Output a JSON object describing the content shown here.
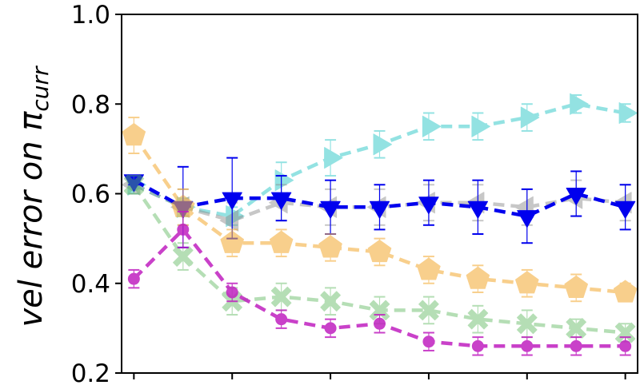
{
  "chart_data": {
    "type": "line",
    "title": "",
    "xlabel": "",
    "ylabel": "vel error on π",
    "ylabel_subscript": "curr",
    "ylim": [
      0.2,
      1.0
    ],
    "yticks": [
      0.2,
      0.4,
      0.6,
      0.8,
      1.0
    ],
    "ytick_labels": [
      "0.2",
      "0.4",
      "0.6",
      "0.8",
      "1.0"
    ],
    "x": [
      0,
      1,
      2,
      3,
      4,
      5,
      6,
      7,
      8,
      9,
      10
    ],
    "xlim": [
      -0.25,
      10.25
    ],
    "xticks": [
      0,
      2,
      4,
      6,
      8,
      10
    ],
    "grid": false,
    "series": [
      {
        "name": "cyan-triangle-right",
        "color": "#4dd0d0",
        "marker": "triangle-right",
        "opacity": 0.6,
        "values": [
          0.62,
          0.57,
          0.55,
          0.63,
          0.68,
          0.71,
          0.75,
          0.75,
          0.77,
          0.8,
          0.78
        ],
        "errors": [
          0.02,
          0.02,
          0.02,
          0.04,
          0.04,
          0.03,
          0.03,
          0.03,
          0.03,
          0.02,
          0.02
        ]
      },
      {
        "name": "gray-triangle-left",
        "color": "#909090",
        "marker": "triangle-left",
        "opacity": 0.5,
        "values": [
          0.62,
          0.57,
          0.54,
          0.58,
          0.57,
          0.57,
          0.58,
          0.58,
          0.57,
          0.59,
          0.58
        ],
        "errors": [
          0.02,
          0.04,
          0.04,
          0.04,
          0.04,
          0.04,
          0.04,
          0.04,
          0.04,
          0.04,
          0.04
        ]
      },
      {
        "name": "blue-triangle-down",
        "color": "#0000ee",
        "marker": "triangle-down",
        "opacity": 1.0,
        "values": [
          0.63,
          0.57,
          0.59,
          0.59,
          0.57,
          0.57,
          0.58,
          0.57,
          0.55,
          0.6,
          0.57
        ],
        "errors": [
          0.01,
          0.09,
          0.09,
          0.05,
          0.06,
          0.05,
          0.05,
          0.06,
          0.06,
          0.05,
          0.05
        ]
      },
      {
        "name": "orange-pentagon",
        "color": "#f5b041",
        "marker": "pentagon",
        "opacity": 0.6,
        "values": [
          0.73,
          0.57,
          0.49,
          0.49,
          0.48,
          0.47,
          0.43,
          0.41,
          0.4,
          0.39,
          0.38
        ],
        "errors": [
          0.04,
          0.04,
          0.03,
          0.03,
          0.03,
          0.03,
          0.03,
          0.03,
          0.03,
          0.03,
          0.02
        ]
      },
      {
        "name": "green-x",
        "color": "#5cb85c",
        "marker": "x-filled",
        "opacity": 0.45,
        "values": [
          0.62,
          0.46,
          0.36,
          0.37,
          0.36,
          0.34,
          0.34,
          0.32,
          0.31,
          0.3,
          0.29
        ],
        "errors": [
          0.02,
          0.03,
          0.03,
          0.03,
          0.03,
          0.03,
          0.03,
          0.03,
          0.03,
          0.02,
          0.02
        ]
      },
      {
        "name": "magenta-circle",
        "color": "#c020c0",
        "marker": "circle",
        "opacity": 0.85,
        "values": [
          0.41,
          0.52,
          0.38,
          0.32,
          0.3,
          0.31,
          0.27,
          0.26,
          0.26,
          0.26,
          0.26
        ],
        "errors": [
          0.02,
          0.04,
          0.02,
          0.02,
          0.02,
          0.02,
          0.02,
          0.02,
          0.02,
          0.02,
          0.02
        ]
      }
    ]
  }
}
